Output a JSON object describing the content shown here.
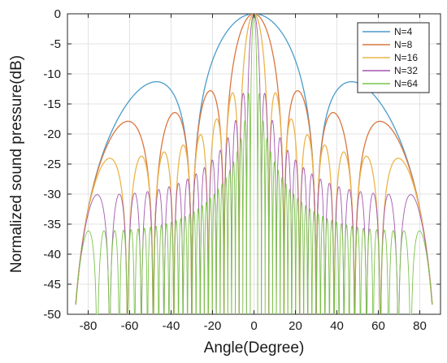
{
  "chart_data": {
    "type": "line",
    "title": "",
    "xlabel": "Angle(Degree)",
    "ylabel": "Normalized sound pressure(dB)",
    "xlim": [
      -90,
      90
    ],
    "ylim": [
      -50,
      0
    ],
    "grid": true,
    "legend_position": "top-right",
    "x_ticks": [
      -80,
      -60,
      -40,
      -20,
      0,
      20,
      40,
      60,
      80
    ],
    "y_ticks": [
      0,
      -5,
      -10,
      -15,
      -20,
      -25,
      -30,
      -35,
      -40,
      -45,
      -50
    ],
    "x_tick_labels": [
      "-80",
      "-60",
      "-40",
      "-20",
      "0",
      "20",
      "40",
      "60",
      "80"
    ],
    "y_tick_labels": [
      "0",
      "-5",
      "-10",
      "-15",
      "-20",
      "-25",
      "-30",
      "-35",
      "-40",
      "-45",
      "-50"
    ],
    "series": [
      {
        "name": "N=4",
        "color": "#4a9cc9",
        "peaks": [
          {
            "x": -60,
            "y": -20.7
          },
          {
            "x": -38.5,
            "y": -17.8
          },
          {
            "x": -20.5,
            "y": -13.3
          },
          {
            "x": 0,
            "y": 0
          },
          {
            "x": 20.5,
            "y": -13.3
          },
          {
            "x": 38.5,
            "y": -17.8
          },
          {
            "x": 60,
            "y": -20.7
          }
        ],
        "nulls": [
          -86,
          -48.6,
          -30,
          -14.5,
          14.5,
          30,
          48.6,
          86
        ]
      },
      {
        "name": "N=8",
        "color": "#d9763f",
        "peaks": [
          {
            "x": -72,
            "y": -27.3
          },
          {
            "x": -55,
            "y": -23
          },
          {
            "x": -27,
            "y": -18
          },
          {
            "x": -10,
            "y": -13.4
          },
          {
            "x": 0,
            "y": 0
          },
          {
            "x": 10,
            "y": -13.4
          },
          {
            "x": 27,
            "y": -18
          },
          {
            "x": 55,
            "y": -23
          },
          {
            "x": 72,
            "y": -27.3
          }
        ]
      },
      {
        "name": "N=16",
        "color": "#ebb54a",
        "peaks": [
          {
            "x": -80,
            "y": -34
          },
          {
            "x": -5,
            "y": -13.4
          },
          {
            "x": 0,
            "y": 0
          },
          {
            "x": 5,
            "y": -13.4
          },
          {
            "x": 80,
            "y": -34
          }
        ]
      },
      {
        "name": "N=32",
        "color": "#a457b0",
        "peaks": [
          {
            "x": -84,
            "y": -40.5
          },
          {
            "x": -2.5,
            "y": -13.4
          },
          {
            "x": 0,
            "y": 0
          },
          {
            "x": 2.5,
            "y": -13.4
          },
          {
            "x": 84,
            "y": -40.5
          }
        ]
      },
      {
        "name": "N=64",
        "color": "#7cc24a",
        "peaks": [
          {
            "x": -86,
            "y": -46.5
          },
          {
            "x": -1.2,
            "y": -13.4
          },
          {
            "x": 0,
            "y": 0
          },
          {
            "x": 1.2,
            "y": -13.4
          },
          {
            "x": 86,
            "y": -46.5
          }
        ]
      }
    ]
  }
}
